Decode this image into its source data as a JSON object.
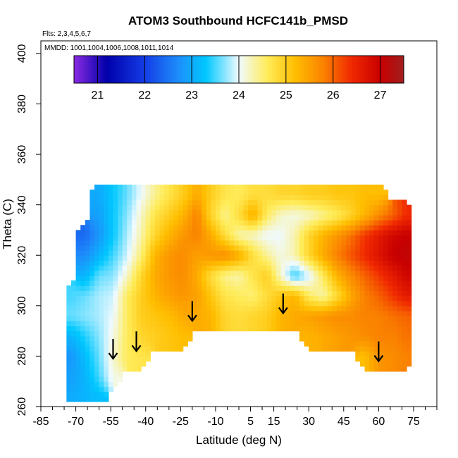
{
  "chart_data": {
    "type": "heatmap",
    "title": "ATOM3 Southbound HCFC141b_PMSD",
    "flights_label": "Flts: 2,3,4,5,6,7",
    "dates_label": "MMDD: 1001,1004,1006,1008,1011,1014",
    "xlabel": "Latitude (deg N)",
    "ylabel": "Theta (C)",
    "xlim": [
      -85,
      85
    ],
    "ylim": [
      260,
      405
    ],
    "x_tick_labels": [
      "-85",
      "-70",
      "-55",
      "-40",
      "-25",
      "-10",
      "5",
      "15",
      "30",
      "45",
      "60",
      "75"
    ],
    "x_tick_values": [
      -85,
      -70,
      -55,
      -40,
      -25,
      -10,
      5,
      15,
      30,
      45,
      60,
      75
    ],
    "y_tick_labels": [
      "260",
      "280",
      "300",
      "320",
      "340",
      "360",
      "380",
      "400"
    ],
    "y_tick_values": [
      260,
      280,
      300,
      320,
      340,
      360,
      380,
      400
    ],
    "colorbar": {
      "range": [
        20.5,
        27.5
      ],
      "tick_labels": [
        "21",
        "22",
        "23",
        "24",
        "25",
        "26",
        "27"
      ],
      "tick_values": [
        21,
        22,
        23,
        24,
        25,
        26,
        27
      ]
    },
    "arrows": [
      {
        "lat": -54,
        "theta": 279
      },
      {
        "lat": -44,
        "theta": 282
      },
      {
        "lat": -20,
        "theta": 294
      },
      {
        "lat": 19,
        "theta": 297
      },
      {
        "lat": 60,
        "theta": 278
      }
    ],
    "field": {
      "grid_step_lat": 6,
      "grid_step_theta": 8,
      "lat_nodes": [
        -72,
        -66,
        -60,
        -54,
        -48,
        -42,
        -36,
        -30,
        -24,
        -18,
        -12,
        -6,
        0,
        6,
        12,
        18,
        24,
        30,
        36,
        42,
        48,
        54,
        60,
        66,
        72
      ],
      "theta_nodes": [
        264,
        272,
        280,
        288,
        296,
        304,
        312,
        320,
        328,
        336,
        344,
        352
      ],
      "values_rows_low_to_high_theta": [
        [
          23.0,
          23.1,
          23.2,
          null,
          null,
          null,
          null,
          null,
          null,
          null,
          null,
          null,
          null,
          null,
          null,
          null,
          null,
          null,
          null,
          null,
          null,
          null,
          null,
          null,
          null
        ],
        [
          22.9,
          23.1,
          23.5,
          24.1,
          null,
          null,
          null,
          null,
          null,
          null,
          null,
          null,
          null,
          null,
          null,
          null,
          null,
          null,
          null,
          null,
          null,
          null,
          null,
          null,
          null
        ],
        [
          22.8,
          23.2,
          23.6,
          24.2,
          24.6,
          24.7,
          null,
          null,
          null,
          null,
          null,
          null,
          null,
          null,
          null,
          null,
          null,
          null,
          null,
          null,
          null,
          25.2,
          25.6,
          25.7,
          25.8
        ],
        [
          23.1,
          23.4,
          23.7,
          24.1,
          24.6,
          24.9,
          25.0,
          25.1,
          25.2,
          null,
          null,
          null,
          null,
          null,
          null,
          null,
          null,
          25.3,
          25.4,
          25.5,
          25.6,
          25.7,
          25.8,
          25.8,
          25.9
        ],
        [
          23.6,
          23.7,
          23.8,
          24.0,
          24.6,
          25.0,
          25.1,
          25.2,
          25.4,
          25.4,
          25.3,
          24.9,
          24.8,
          24.9,
          25.0,
          25.3,
          25.4,
          25.5,
          25.6,
          25.7,
          25.7,
          25.8,
          25.8,
          25.9,
          26.0
        ],
        [
          23.5,
          23.6,
          23.8,
          23.9,
          24.6,
          25.0,
          25.3,
          25.5,
          25.6,
          25.5,
          25.1,
          24.7,
          24.6,
          24.5,
          24.8,
          25.1,
          25.3,
          24.6,
          24.3,
          24.8,
          25.4,
          25.8,
          26.0,
          26.3,
          26.6
        ],
        [
          null,
          23.1,
          23.6,
          23.7,
          24.2,
          24.9,
          25.4,
          25.6,
          25.7,
          25.4,
          24.8,
          24.4,
          24.3,
          24.7,
          25.0,
          24.2,
          23.4,
          23.9,
          24.6,
          25.3,
          25.7,
          26.0,
          26.3,
          26.6,
          26.9
        ],
        [
          null,
          22.7,
          23.1,
          23.5,
          23.9,
          24.5,
          25.3,
          25.6,
          25.7,
          25.5,
          25.6,
          25.7,
          25.4,
          24.8,
          24.4,
          24.1,
          24.3,
          24.9,
          25.4,
          25.8,
          26.1,
          26.4,
          26.7,
          27.0,
          27.1
        ],
        [
          null,
          22.4,
          22.8,
          23.3,
          23.8,
          24.3,
          24.9,
          25.3,
          25.6,
          25.8,
          25.4,
          24.8,
          24.3,
          24.2,
          24.0,
          24.0,
          24.3,
          24.9,
          25.3,
          25.6,
          25.9,
          26.3,
          26.6,
          26.9,
          27.0
        ],
        [
          null,
          null,
          22.9,
          23.3,
          23.7,
          24.2,
          24.7,
          25.0,
          25.3,
          25.8,
          24.9,
          24.4,
          24.8,
          25.4,
          24.6,
          24.2,
          24.1,
          24.2,
          24.4,
          24.6,
          24.9,
          25.3,
          25.7,
          26.0,
          26.4
        ],
        [
          null,
          null,
          23.0,
          23.3,
          23.6,
          24.0,
          24.4,
          24.7,
          25.0,
          25.4,
          25.0,
          24.7,
          24.6,
          24.8,
          24.8,
          24.9,
          24.9,
          25.0,
          25.0,
          25.1,
          25.1,
          25.2,
          25.2,
          null,
          null
        ],
        [
          null,
          null,
          null,
          null,
          null,
          null,
          null,
          null,
          null,
          null,
          null,
          null,
          null,
          null,
          null,
          null,
          null,
          null,
          null,
          null,
          null,
          null,
          null,
          null,
          null
        ]
      ]
    }
  }
}
